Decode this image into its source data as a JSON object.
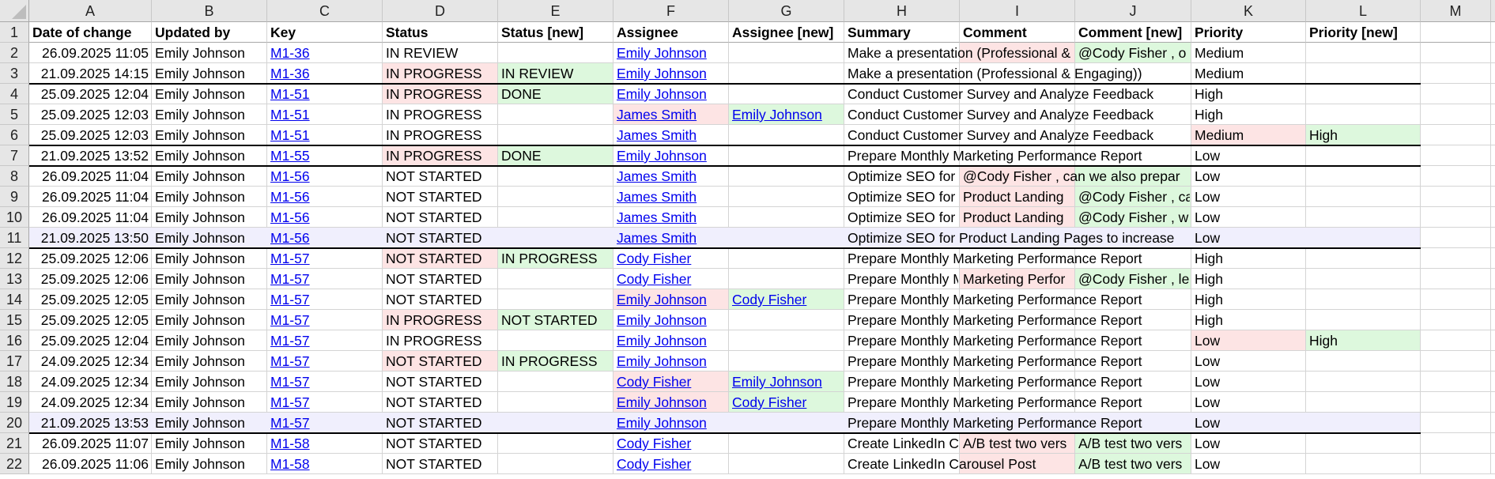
{
  "colors": {
    "removed": "#fde4e4",
    "added": "#ddf8dd",
    "highlight": "#f0effd",
    "link": "#0000ee"
  },
  "column_letters": [
    "A",
    "B",
    "C",
    "D",
    "E",
    "F",
    "G",
    "H",
    "I",
    "J",
    "K",
    "L",
    "M"
  ],
  "headers": [
    "Date of change",
    "Updated by",
    "Key",
    "Status",
    "Status [new]",
    "Assignee",
    "Assignee [new]",
    "Summary",
    "Comment",
    "Comment [new]",
    "Priority",
    "Priority [new]",
    ""
  ],
  "rows": [
    {
      "n": "2",
      "cells": [
        "26.09.2025 11:05",
        "Emily Johnson",
        "M1-36",
        "IN REVIEW",
        "",
        "Emily Johnson",
        "",
        "Make a presentation (Professional & Engaging))",
        "",
        "@Cody Fisher , o",
        "Medium",
        "",
        ""
      ],
      "fills": {
        "8": "removed",
        "9": "added"
      }
    },
    {
      "n": "3",
      "cells": [
        "21.09.2025 14:15",
        "Emily Johnson",
        "M1-36",
        "IN PROGRESS",
        "IN REVIEW",
        "Emily Johnson",
        "",
        "Make a presentation (Professional & Engaging))",
        "",
        "",
        "Medium",
        "",
        ""
      ],
      "fills": {
        "3": "removed",
        "4": "added"
      }
    },
    {
      "n": "4",
      "separator_above": true,
      "cells": [
        "25.09.2025 12:04",
        "Emily Johnson",
        "M1-51",
        "IN PROGRESS",
        "DONE",
        "Emily Johnson",
        "",
        "Conduct Customer Survey and Analyze Feedback",
        "",
        "",
        "High",
        "",
        ""
      ],
      "fills": {
        "3": "removed",
        "4": "added"
      }
    },
    {
      "n": "5",
      "cells": [
        "25.09.2025 12:03",
        "Emily Johnson",
        "M1-51",
        "IN PROGRESS",
        "",
        "James Smith",
        "Emily Johnson",
        "Conduct Customer Survey and Analyze Feedback",
        "",
        "",
        "High",
        "",
        ""
      ],
      "fills": {
        "5": "removed",
        "6": "added"
      }
    },
    {
      "n": "6",
      "cells": [
        "25.09.2025 12:03",
        "Emily Johnson",
        "M1-51",
        "IN PROGRESS",
        "",
        "James Smith",
        "",
        "Conduct Customer Survey and Analyze Feedback",
        "",
        "",
        "Medium",
        "High",
        ""
      ],
      "fills": {
        "10": "removed",
        "11": "added"
      }
    },
    {
      "n": "7",
      "separator_above": true,
      "cells": [
        "21.09.2025 13:52",
        "Emily Johnson",
        "M1-55",
        "IN PROGRESS",
        "DONE",
        "Emily Johnson",
        "",
        "Prepare Monthly Marketing Performance Report",
        "",
        "",
        "Low",
        "",
        ""
      ],
      "fills": {
        "3": "removed",
        "4": "added"
      }
    },
    {
      "n": "8",
      "separator_above": true,
      "cells": [
        "26.09.2025 11:04",
        "Emily Johnson",
        "M1-56",
        "NOT STARTED",
        "",
        "James Smith",
        "",
        "Optimize SEO for Product Landing Pages to increase",
        "@Cody Fisher , can we also prepar",
        "",
        "Low",
        "",
        ""
      ],
      "fills": {
        "8": "removed",
        "9": "added"
      }
    },
    {
      "n": "9",
      "cells": [
        "26.09.2025 11:04",
        "Emily Johnson",
        "M1-56",
        "NOT STARTED",
        "",
        "James Smith",
        "",
        "Optimize SEO for Product Landing Pages to increase",
        "Product Landing",
        "@Cody Fisher , ca",
        "Low",
        "",
        ""
      ],
      "fills": {
        "8": "removed",
        "9": "added"
      }
    },
    {
      "n": "10",
      "cells": [
        "26.09.2025 11:04",
        "Emily Johnson",
        "M1-56",
        "NOT STARTED",
        "",
        "James Smith",
        "",
        "Optimize SEO for Product Landing Pages to increase",
        "Product Landing",
        "@Cody Fisher , w",
        "Low",
        "",
        ""
      ],
      "fills": {
        "8": "removed",
        "9": "added"
      }
    },
    {
      "n": "11",
      "highlight": true,
      "cells": [
        "21.09.2025 13:50",
        "Emily Johnson",
        "M1-56",
        "NOT STARTED",
        "",
        "James Smith",
        "",
        "Optimize SEO for Product Landing Pages to increase",
        "",
        "",
        "Low",
        "",
        ""
      ],
      "fills": {}
    },
    {
      "n": "12",
      "separator_above": true,
      "cells": [
        "25.09.2025 12:06",
        "Emily Johnson",
        "M1-57",
        "NOT STARTED",
        "IN PROGRESS",
        "Cody Fisher",
        "",
        "Prepare Monthly Marketing Performance Report",
        "",
        "",
        "High",
        "",
        ""
      ],
      "fills": {
        "3": "removed",
        "4": "added"
      }
    },
    {
      "n": "13",
      "cells": [
        "25.09.2025 12:06",
        "Emily Johnson",
        "M1-57",
        "NOT STARTED",
        "",
        "Cody Fisher",
        "",
        "Prepare Monthly Marketing Performance Report",
        "Marketing Perfor",
        "@Cody Fisher , le",
        "High",
        "",
        ""
      ],
      "fills": {
        "8": "removed",
        "9": "added"
      }
    },
    {
      "n": "14",
      "cells": [
        "25.09.2025 12:05",
        "Emily Johnson",
        "M1-57",
        "NOT STARTED",
        "",
        "Emily Johnson",
        "Cody Fisher",
        "Prepare Monthly Marketing Performance Report",
        "",
        "",
        "High",
        "",
        ""
      ],
      "fills": {
        "5": "removed",
        "6": "added"
      }
    },
    {
      "n": "15",
      "cells": [
        "25.09.2025 12:05",
        "Emily Johnson",
        "M1-57",
        "IN PROGRESS",
        "NOT STARTED",
        "Emily Johnson",
        "",
        "Prepare Monthly Marketing Performance Report",
        "",
        "",
        "High",
        "",
        ""
      ],
      "fills": {
        "3": "removed",
        "4": "added"
      }
    },
    {
      "n": "16",
      "cells": [
        "25.09.2025 12:04",
        "Emily Johnson",
        "M1-57",
        "IN PROGRESS",
        "",
        "Emily Johnson",
        "",
        "Prepare Monthly Marketing Performance Report",
        "",
        "",
        "Low",
        "High",
        ""
      ],
      "fills": {
        "10": "removed",
        "11": "added"
      }
    },
    {
      "n": "17",
      "cells": [
        "24.09.2025 12:34",
        "Emily Johnson",
        "M1-57",
        "NOT STARTED",
        "IN PROGRESS",
        "Emily Johnson",
        "",
        "Prepare Monthly Marketing Performance Report",
        "",
        "",
        "Low",
        "",
        ""
      ],
      "fills": {
        "3": "removed",
        "4": "added"
      }
    },
    {
      "n": "18",
      "cells": [
        "24.09.2025 12:34",
        "Emily Johnson",
        "M1-57",
        "NOT STARTED",
        "",
        "Cody Fisher",
        "Emily Johnson",
        "Prepare Monthly Marketing Performance Report",
        "",
        "",
        "Low",
        "",
        ""
      ],
      "fills": {
        "5": "removed",
        "6": "added"
      }
    },
    {
      "n": "19",
      "cells": [
        "24.09.2025 12:34",
        "Emily Johnson",
        "M1-57",
        "NOT STARTED",
        "",
        "Emily Johnson",
        "Cody Fisher",
        "Prepare Monthly Marketing Performance Report",
        "",
        "",
        "Low",
        "",
        ""
      ],
      "fills": {
        "5": "removed",
        "6": "added"
      }
    },
    {
      "n": "20",
      "highlight": true,
      "cells": [
        "21.09.2025 13:53",
        "Emily Johnson",
        "M1-57",
        "NOT STARTED",
        "",
        "Emily Johnson",
        "",
        "Prepare Monthly Marketing Performance Report",
        "",
        "",
        "Low",
        "",
        ""
      ],
      "fills": {}
    },
    {
      "n": "21",
      "separator_above": true,
      "cells": [
        "26.09.2025 11:07",
        "Emily Johnson",
        "M1-58",
        "NOT STARTED",
        "",
        "Cody Fisher",
        "",
        "Create LinkedIn Carousel Post",
        "A/B test two vers",
        "A/B test two vers",
        "Low",
        "",
        ""
      ],
      "fills": {
        "8": "removed",
        "9": "added"
      }
    },
    {
      "n": "22",
      "cells": [
        "26.09.2025 11:06",
        "Emily Johnson",
        "M1-58",
        "NOT STARTED",
        "",
        "Cody Fisher",
        "",
        "Create LinkedIn Carousel Post",
        "",
        "A/B test two vers",
        "Low",
        "",
        ""
      ],
      "fills": {
        "8": "removed",
        "9": "added"
      }
    }
  ]
}
